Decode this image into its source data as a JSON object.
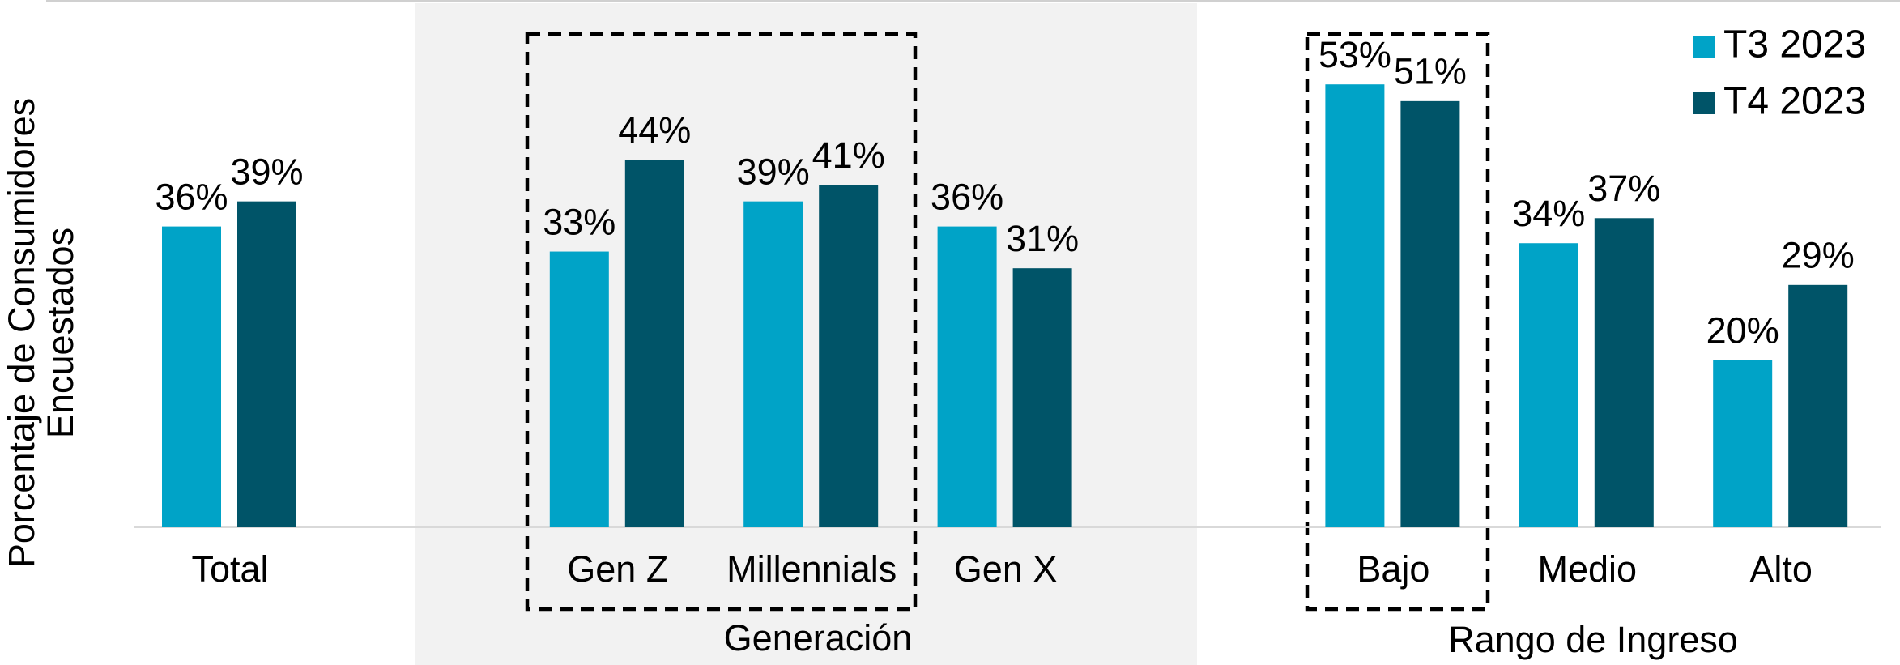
{
  "chart_data": {
    "type": "bar",
    "ylabel": [
      "Porcentaje de Consumidores",
      "Encuestados"
    ],
    "categories": [
      "Total",
      null,
      "Gen Z",
      "Millennials",
      "Gen X",
      null,
      "Bajo",
      "Medio",
      "Alto"
    ],
    "groups": [
      "Generación",
      "Rango de Ingreso"
    ],
    "series": [
      {
        "name": "T3 2023",
        "color": "#00a3c7",
        "values": [
          36,
          null,
          33,
          39,
          36,
          null,
          53,
          34,
          20
        ],
        "value_labels": [
          "36%",
          null,
          "33%",
          "39%",
          "36%",
          null,
          "53%",
          "34%",
          "20%"
        ]
      },
      {
        "name": "T4 2023",
        "color": "#005468",
        "values": [
          39,
          null,
          44,
          41,
          31,
          null,
          51,
          37,
          29
        ],
        "value_labels": [
          "39%",
          null,
          "44%",
          "41%",
          "31%",
          null,
          "51%",
          "37%",
          "29%"
        ]
      }
    ],
    "ylim": [
      0,
      60
    ],
    "legend": "top-right"
  }
}
